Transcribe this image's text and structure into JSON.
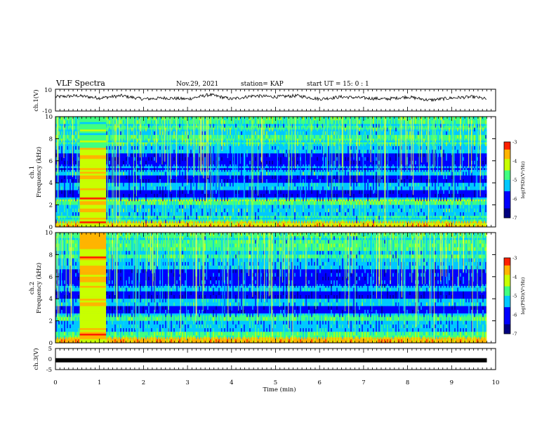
{
  "header": {
    "title": "VLF Spectra",
    "date": "Nov.29, 2021",
    "station": "station= KAP",
    "start": "start  UT =   15: 0  : 1"
  },
  "chart_data": [
    {
      "type": "line",
      "panel": "ch1-waveform",
      "ylabel": "ch.1(V)",
      "ylim": [
        -10,
        10
      ],
      "y_ticks": [
        "10",
        "-10"
      ],
      "x_range": [
        0,
        9.8
      ],
      "note_values": "continuous waveform oscillating roughly between -2 and 8 V",
      "series": [
        {
          "x": [
            0,
            0.5,
            1,
            1.5,
            2,
            2.5,
            3,
            3.5,
            4,
            4.5,
            5,
            5.5,
            6,
            6.5,
            7,
            7.5,
            8,
            8.5,
            9,
            9.5,
            9.8
          ],
          "values": [
            3,
            4,
            2,
            4,
            1,
            2,
            1,
            5,
            1,
            4,
            3,
            4,
            1,
            3,
            2,
            1,
            3,
            0,
            2,
            3,
            1
          ]
        }
      ]
    },
    {
      "type": "heatmap",
      "panel": "ch1-spectrogram",
      "ylabel": "ch.1\nFrequency (kHz)",
      "ylabel_lines": [
        "ch.1",
        "Frequency (kHz)"
      ],
      "ylim": [
        0,
        10
      ],
      "y_ticks": [
        "0",
        "2",
        "4",
        "6",
        "8",
        "10"
      ],
      "colorbar": {
        "label": "log(PSD)(V²/Hz)",
        "ticks": [
          "-3",
          "-4",
          "-5",
          "-6",
          "-7"
        ],
        "range": [
          -7,
          -3
        ]
      },
      "broadband_burst_min": [
        0.55,
        1.15
      ]
    },
    {
      "type": "heatmap",
      "panel": "ch2-spectrogram",
      "ylabel": "ch.2\nFrequency (kHz)",
      "ylabel_lines": [
        "ch.2",
        "Frequency (kHz)"
      ],
      "ylim": [
        0,
        10
      ],
      "y_ticks": [
        "0",
        "2",
        "4",
        "6",
        "8",
        "10"
      ],
      "colorbar": {
        "label": "log(PSD)(V²/Hz)",
        "ticks": [
          "-3",
          "-4",
          "-5",
          "-6",
          "-7"
        ],
        "range": [
          -7,
          -3
        ]
      },
      "broadband_burst_min": [
        0.55,
        1.15
      ]
    },
    {
      "type": "line",
      "panel": "ch3-waveform",
      "ylabel": "ch.3(V)",
      "ylim": [
        -5,
        5
      ],
      "y_ticks": [
        "5",
        "0",
        "-5"
      ],
      "series": [
        {
          "x": [
            0,
            9.8
          ],
          "values": [
            -0.6,
            -0.6
          ]
        }
      ]
    }
  ],
  "time_axis": {
    "xlabel": "Time  (min)",
    "xlim": [
      0,
      10
    ],
    "ticks": [
      "0",
      "1",
      "2",
      "3",
      "4",
      "5",
      "6",
      "7",
      "8",
      "9",
      "10"
    ]
  }
}
